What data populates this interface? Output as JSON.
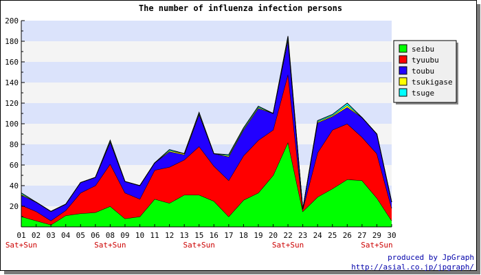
{
  "chart_data": {
    "type": "area",
    "stacked": true,
    "title": "The number of influenza infection persons",
    "xlabel": "",
    "ylabel": "",
    "ylim": [
      0,
      200
    ],
    "yticks": [
      20,
      40,
      60,
      80,
      100,
      120,
      140,
      160,
      180,
      200
    ],
    "x": [
      "01",
      "02",
      "03",
      "04",
      "05",
      "06",
      "08",
      "09",
      "10",
      "11",
      "12",
      "13",
      "15",
      "16",
      "17",
      "18",
      "19",
      "20",
      "22",
      "23",
      "24",
      "25",
      "26",
      "27",
      "29",
      "30"
    ],
    "weekend_labels": [
      {
        "at": "01",
        "text": "Sat+Sun"
      },
      {
        "at": "08",
        "text": "Sat+Sun"
      },
      {
        "at": "15",
        "text": "Sat+Sun"
      },
      {
        "at": "22",
        "text": "Sat+Sun"
      },
      {
        "at": "29",
        "text": "Sat+Sun"
      }
    ],
    "grid": true,
    "legend_position": "right",
    "series": [
      {
        "name": "seibu",
        "color": "#00ff00",
        "values": [
          10,
          6,
          2,
          11,
          13,
          14,
          20,
          8,
          10,
          27,
          23,
          31,
          31,
          25,
          10,
          26,
          33,
          50,
          82,
          15,
          29,
          37,
          46,
          45,
          28,
          6
        ]
      },
      {
        "name": "tyuubu",
        "color": "#ff0000",
        "values": [
          11,
          9,
          4,
          5,
          20,
          26,
          41,
          25,
          17,
          28,
          35,
          34,
          47,
          34,
          35,
          43,
          51,
          44,
          66,
          2,
          43,
          57,
          54,
          42,
          43,
          12
        ]
      },
      {
        "name": "toubu",
        "color": "#2200ff",
        "values": [
          10,
          9,
          9,
          6,
          10,
          8,
          21,
          11,
          13,
          7,
          15,
          5,
          31,
          12,
          23,
          25,
          31,
          16,
          33,
          0,
          29,
          13,
          16,
          19,
          19,
          6
        ]
      },
      {
        "name": "tsukigase",
        "color": "#ffff00",
        "values": [
          1,
          0,
          0,
          0,
          0,
          0,
          1,
          0,
          0,
          0,
          1,
          1,
          1,
          0,
          1,
          1,
          1,
          0,
          2,
          0,
          1,
          1,
          2,
          0,
          0,
          0
        ]
      },
      {
        "name": "tsuge",
        "color": "#00ffff",
        "values": [
          1,
          0,
          0,
          0,
          0,
          0,
          1,
          0,
          0,
          0,
          1,
          0,
          1,
          0,
          1,
          1,
          1,
          0,
          2,
          0,
          1,
          1,
          2,
          0,
          0,
          0
        ]
      }
    ]
  },
  "credit": {
    "line1": "produced by JpGraph",
    "line2": "http://asial.co.jp/jpgraph/"
  }
}
